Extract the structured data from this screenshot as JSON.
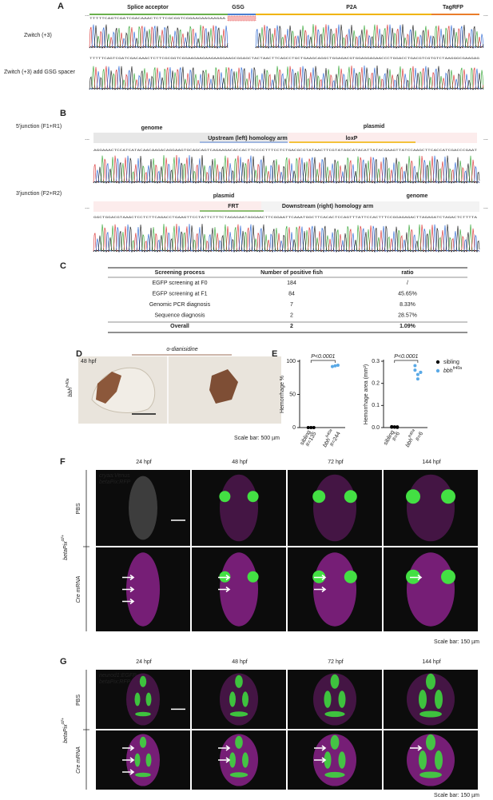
{
  "panel_labels": [
    "A",
    "B",
    "C",
    "D",
    "E",
    "F",
    "G"
  ],
  "ellipsis": "...",
  "a": {
    "headers": [
      {
        "text": "Splice acceptor",
        "color": "#6ab04c"
      },
      {
        "text": "GSG",
        "color": "#4a7fd0"
      },
      {
        "text": "P2A",
        "color": "#f0b400"
      },
      {
        "text": "TagRFP",
        "color": "#ea7d2a"
      }
    ],
    "rows": [
      {
        "label": "Zwitch (+3)",
        "sequence": "TTTTTCAGTCGATCGACAAACTCTTCGCGGTCGGAAGAAGAAGAA"
      },
      {
        "label": "Zwitch (+3) add GSG spacer",
        "sequence": "TTTTTCAGTCGATCGACAAACTCTTCGCGGTCGGAAGAAGAAGAAGGAAGCGGAGCTACTAACTTCAGCCTGCTGAAGCAGGCTGGAGACGTGGAGGAGAACCCTGGACCTGACGTCGTGTCTAAGGGCGAAGAG"
      }
    ]
  },
  "b": {
    "junction5": {
      "label": "5'junction (F1+R1)",
      "regions": [
        {
          "text": "genome",
          "color": "#888888"
        },
        {
          "text": "plasmid",
          "color": "#f08080"
        },
        {
          "text": "Upstream (left) homology arm",
          "color": "#8aa7dd"
        },
        {
          "text": "loxP",
          "color": "#f0b400"
        }
      ],
      "sequence": "AGGAAACTCCATCATACAACAAGACAGGAAGTGCAGCAGTCAGAAGACACCACTTCCCCTTTCCTCTGACGCGTATAACTTCGTATAGCATACATTATACGAAGTTATCCAAGCTTCACCATCGACCCGAAT"
    },
    "junction3": {
      "label": "3'junction (F2+R2)",
      "regions": [
        {
          "text": "plasmid",
          "color": "#f08080"
        },
        {
          "text": "FRT",
          "color": "#6ab04c"
        },
        {
          "text": "Downstream (right) homology arm",
          "color": "#8aa7dd"
        },
        {
          "text": "genome",
          "color": "#888888"
        }
      ],
      "sequence": "GGCTGGACGTAAACTCCTCTTCAGACCTGAAGTTCCTATTCTTTCTAGAGAATAGGAACTTCGGAATTCAAATGGCTTCACACTCCAGTTTATTCCACTTTCCGGAGAGACTTAGAGATCTAGACTCTTTTA"
    }
  },
  "c": {
    "table": {
      "header": [
        "Screening process",
        "Number of positive fish",
        "ratio"
      ],
      "rows": [
        [
          "EGFP screening at F0",
          "184",
          "/"
        ],
        [
          "EGFP screening at F1",
          "84",
          "45.65%"
        ],
        [
          "Genomic PCR diagnosis",
          "7",
          "8.33%"
        ],
        [
          "Sequence diagnosis",
          "2",
          "28.57%"
        ],
        [
          "Overall",
          "2",
          "1.09%"
        ]
      ]
    }
  },
  "d": {
    "time": "48 hpf",
    "stain": "o-dianisidine",
    "genotype": "bbh",
    "genotype_sup": "fr40a",
    "scale_bar": "Scale bar: 500 µm"
  },
  "e": {
    "plots": [
      {
        "type": "scatter",
        "y_title": "Hemorrhage %",
        "ylim": [
          0,
          100
        ],
        "yticks": [
          0,
          50,
          100
        ],
        "p_value": "P<0.0001",
        "groups": [
          {
            "name": "sibling",
            "n": "#=135",
            "color": "#000000",
            "values": [
              0,
              0,
              0
            ]
          },
          {
            "name": "bbh",
            "sup": "fr40a",
            "n": "#=244",
            "color": "#5aa9e6",
            "values": [
              92,
              93,
              94
            ]
          }
        ]
      },
      {
        "type": "scatter",
        "y_title": "Hemorrhage area (mm²)",
        "ylim": [
          0,
          0.3
        ],
        "yticks": [
          {
            "value": 0,
            "label": "0.0"
          },
          0.1,
          0.2,
          0.3
        ],
        "p_value": "P<0.0001",
        "groups": [
          {
            "name": "sibling",
            "n": "#=6",
            "color": "#000000",
            "values": [
              0.002,
              0.003,
              0.001,
              0.004,
              0.002,
              0.003
            ]
          },
          {
            "name": "bbh",
            "sup": "fr40a",
            "n": "#=6",
            "color": "#5aa9e6",
            "values": [
              0.26,
              0.24,
              0.25,
              0.28,
              0.22,
              0.25
            ]
          }
        ]
      }
    ],
    "legend": [
      {
        "name": "sibling",
        "color": "#000000"
      },
      {
        "name": "bbh",
        "sup": "fr40a",
        "color": "#5aa9e6"
      }
    ]
  },
  "f": {
    "times": [
      "24 hpf",
      "48 hpf",
      "72 hpf",
      "144 hpf"
    ],
    "rows": [
      "PBS",
      "Cre mRNA"
    ],
    "genotype": "betaPix",
    "genotype_sup": "ct/+",
    "markers": [
      "cryaa:Venus",
      "betaPix:RFP"
    ],
    "scale_bar": "Scale bar: 150 µm"
  },
  "g": {
    "times": [
      "24 hpf",
      "48 hpf",
      "72 hpf",
      "144 hpf"
    ],
    "rows": [
      "PBS",
      "Cre mRNA"
    ],
    "genotype": "betaPix",
    "genotype_sup": "ct/+",
    "markers": [
      "neurod1:EGFP",
      "betaPix:RFP"
    ],
    "scale_bar": "Scale bar: 150 µm"
  }
}
